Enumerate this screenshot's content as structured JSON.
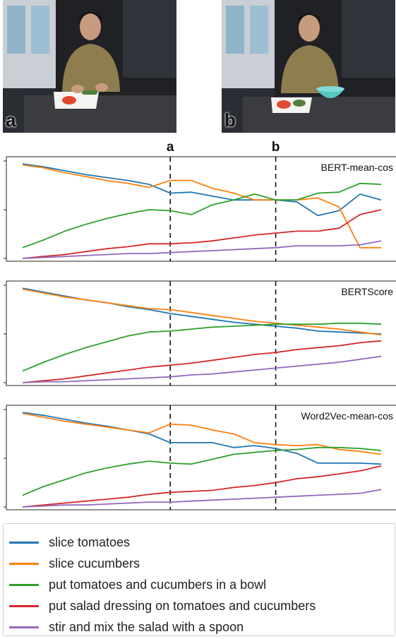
{
  "photos": [
    {
      "label": "a"
    },
    {
      "label": "b"
    }
  ],
  "markers": [
    {
      "label": "a",
      "x": 7
    },
    {
      "label": "b",
      "x": 12
    }
  ],
  "colors": {
    "slice_tomatoes": "#1f77b4",
    "slice_cucumbers": "#ff7f0e",
    "put_in_bowl": "#2ca02c",
    "dressing": "#d62728",
    "stir": "#9467bd"
  },
  "legend": [
    {
      "label": "slice tomatoes",
      "color": "#1f77b4"
    },
    {
      "label": "slice cucumbers",
      "color": "#ff7f0e"
    },
    {
      "label": "put tomatoes and cucumbers in a bowl",
      "color": "#2ca02c"
    },
    {
      "label": "put salad dressing on tomatoes and cucumbers",
      "color": "#d62728"
    },
    {
      "label": "stir and mix the salad with a spoon",
      "color": "#9467bd"
    }
  ],
  "chart_data": [
    {
      "type": "line",
      "title": "BERT-mean-cos",
      "x": [
        0,
        1,
        2,
        3,
        4,
        5,
        6,
        7,
        8,
        9,
        10,
        11,
        12,
        13,
        14,
        15,
        16,
        17
      ],
      "ylim": [
        0,
        1
      ],
      "vlines": [
        7,
        12
      ],
      "series": [
        {
          "name": "slice tomatoes",
          "values": [
            0.97,
            0.94,
            0.9,
            0.86,
            0.83,
            0.8,
            0.76,
            0.67,
            0.68,
            0.64,
            0.6,
            0.6,
            0.6,
            0.58,
            0.44,
            0.49,
            0.66,
            0.6
          ]
        },
        {
          "name": "slice cucumbers",
          "values": [
            0.96,
            0.93,
            0.88,
            0.84,
            0.8,
            0.77,
            0.73,
            0.8,
            0.8,
            0.72,
            0.67,
            0.6,
            0.6,
            0.6,
            0.62,
            0.53,
            0.11,
            0.11
          ]
        },
        {
          "name": "put tomatoes and cucumbers in a bowl",
          "values": [
            0.11,
            0.19,
            0.28,
            0.35,
            0.41,
            0.46,
            0.5,
            0.49,
            0.45,
            0.55,
            0.6,
            0.66,
            0.6,
            0.6,
            0.67,
            0.68,
            0.77,
            0.76
          ]
        },
        {
          "name": "put salad dressing on tomatoes and cucumbers",
          "values": [
            0,
            0.02,
            0.04,
            0.07,
            0.1,
            0.12,
            0.15,
            0.15,
            0.16,
            0.18,
            0.21,
            0.24,
            0.26,
            0.28,
            0.28,
            0.31,
            0.45,
            0.5
          ]
        },
        {
          "name": "stir and mix the salad with a spoon",
          "values": [
            0,
            0.01,
            0.02,
            0.03,
            0.04,
            0.05,
            0.05,
            0.06,
            0.07,
            0.08,
            0.09,
            0.1,
            0.11,
            0.13,
            0.13,
            0.13,
            0.14,
            0.18
          ]
        }
      ]
    },
    {
      "type": "line",
      "title": "BERTScore",
      "x": [
        0,
        1,
        2,
        3,
        4,
        5,
        6,
        7,
        8,
        9,
        10,
        11,
        12,
        13,
        14,
        15,
        16,
        17
      ],
      "ylim": [
        0,
        1
      ],
      "vlines": [
        7,
        12
      ],
      "series": [
        {
          "name": "slice tomatoes",
          "values": [
            0.97,
            0.93,
            0.89,
            0.85,
            0.82,
            0.78,
            0.75,
            0.71,
            0.68,
            0.65,
            0.62,
            0.6,
            0.58,
            0.56,
            0.53,
            0.52,
            0.51,
            0.5
          ]
        },
        {
          "name": "slice cucumbers",
          "values": [
            0.96,
            0.92,
            0.88,
            0.85,
            0.82,
            0.79,
            0.76,
            0.75,
            0.72,
            0.69,
            0.66,
            0.63,
            0.61,
            0.59,
            0.57,
            0.55,
            0.52,
            0.49
          ]
        },
        {
          "name": "put tomatoes and cucumbers in a bowl",
          "values": [
            0.12,
            0.21,
            0.29,
            0.36,
            0.42,
            0.48,
            0.52,
            0.53,
            0.55,
            0.57,
            0.58,
            0.59,
            0.6,
            0.6,
            0.6,
            0.61,
            0.61,
            0.6
          ]
        },
        {
          "name": "put salad dressing on tomatoes and cucumbers",
          "values": [
            0,
            0.02,
            0.04,
            0.07,
            0.1,
            0.13,
            0.16,
            0.18,
            0.2,
            0.23,
            0.26,
            0.29,
            0.31,
            0.34,
            0.36,
            0.38,
            0.41,
            0.43
          ]
        },
        {
          "name": "stir and mix the salad with a spoon",
          "values": [
            0,
            0.01,
            0.01,
            0.02,
            0.03,
            0.04,
            0.05,
            0.06,
            0.08,
            0.09,
            0.11,
            0.13,
            0.15,
            0.17,
            0.19,
            0.21,
            0.24,
            0.27
          ]
        }
      ]
    },
    {
      "type": "line",
      "title": "Word2Vec-mean-cos",
      "x": [
        0,
        1,
        2,
        3,
        4,
        5,
        6,
        7,
        8,
        9,
        10,
        11,
        12,
        13,
        14,
        15,
        16,
        17
      ],
      "ylim": [
        0,
        1
      ],
      "vlines": [
        7,
        12
      ],
      "series": [
        {
          "name": "slice tomatoes",
          "values": [
            0.97,
            0.94,
            0.9,
            0.86,
            0.83,
            0.79,
            0.75,
            0.66,
            0.66,
            0.66,
            0.61,
            0.63,
            0.6,
            0.55,
            0.45,
            0.45,
            0.45,
            0.44
          ]
        },
        {
          "name": "slice cucumbers",
          "values": [
            0.96,
            0.92,
            0.88,
            0.85,
            0.82,
            0.79,
            0.76,
            0.85,
            0.84,
            0.79,
            0.75,
            0.66,
            0.64,
            0.63,
            0.64,
            0.59,
            0.57,
            0.54
          ]
        },
        {
          "name": "put tomatoes and cucumbers in a bowl",
          "values": [
            0.12,
            0.21,
            0.28,
            0.35,
            0.4,
            0.44,
            0.47,
            0.45,
            0.44,
            0.49,
            0.54,
            0.56,
            0.58,
            0.59,
            0.61,
            0.61,
            0.6,
            0.58
          ]
        },
        {
          "name": "put salad dressing on tomatoes and cucumbers",
          "values": [
            0,
            0.02,
            0.04,
            0.06,
            0.08,
            0.1,
            0.13,
            0.15,
            0.16,
            0.17,
            0.2,
            0.22,
            0.25,
            0.29,
            0.31,
            0.34,
            0.37,
            0.42
          ]
        },
        {
          "name": "stir and mix the salad with a spoon",
          "values": [
            0,
            0.01,
            0.02,
            0.02,
            0.03,
            0.04,
            0.05,
            0.05,
            0.06,
            0.07,
            0.08,
            0.09,
            0.1,
            0.11,
            0.12,
            0.13,
            0.14,
            0.18
          ]
        }
      ]
    }
  ]
}
